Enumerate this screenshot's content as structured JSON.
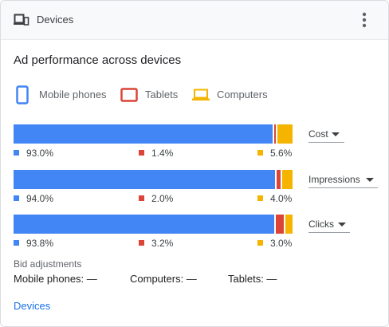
{
  "header": {
    "title": "Devices",
    "icon": "devices-icon",
    "menu_icon": "more-vert-icon"
  },
  "section_title": "Ad performance across devices",
  "colors": {
    "mobile": "#4285f4",
    "tablet": "#db4437",
    "computer": "#f4b400",
    "link": "#1a73e8"
  },
  "legend": [
    {
      "key": "mobile",
      "label": "Mobile phones",
      "icon": "mobile-phone-icon"
    },
    {
      "key": "tablet",
      "label": "Tablets",
      "icon": "tablet-icon"
    },
    {
      "key": "computer",
      "label": "Computers",
      "icon": "computer-icon"
    }
  ],
  "metrics": [
    {
      "label": "Cost",
      "mobile": 93.0,
      "tablet": 1.4,
      "computer": 5.6,
      "mobile_text": "93.0%",
      "tablet_text": "1.4%",
      "computer_text": "5.6%"
    },
    {
      "label": "Impressions",
      "mobile": 94.0,
      "tablet": 2.0,
      "computer": 4.0,
      "mobile_text": "94.0%",
      "tablet_text": "2.0%",
      "computer_text": "4.0%"
    },
    {
      "label": "Clicks",
      "mobile": 93.8,
      "tablet": 3.2,
      "computer": 3.0,
      "mobile_text": "93.8%",
      "tablet_text": "3.2%",
      "computer_text": "3.0%"
    }
  ],
  "bid_adjustments": {
    "title": "Bid adjustments",
    "mobile": "Mobile phones: —",
    "computers": "Computers: —",
    "tablets": "Tablets: —"
  },
  "footer_link": "Devices"
}
